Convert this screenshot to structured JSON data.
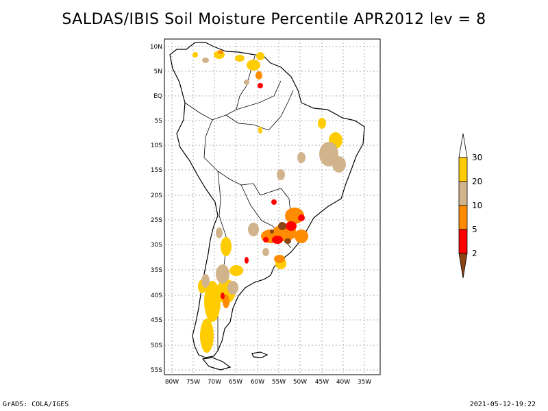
{
  "title": "SALDAS/IBIS Soil Moisture Percentile APR2012 lev = 8",
  "footer_left": "GrADS: COLA/IGES",
  "footer_right": "2021-05-12-19:22",
  "map": {
    "lon_range": [
      -81,
      -30
    ],
    "lat_range": [
      -56,
      12
    ],
    "lat_ticks": [
      "10N",
      "5N",
      "EQ",
      "5S",
      "10S",
      "15S",
      "20S",
      "25S",
      "30S",
      "35S",
      "40S",
      "45S",
      "50S",
      "55S"
    ],
    "lon_ticks": [
      "80W",
      "75W",
      "70W",
      "65W",
      "60W",
      "55W",
      "50W",
      "45W",
      "40W",
      "35W"
    ]
  },
  "legend": {
    "labels": [
      "30",
      "20",
      "10",
      "5",
      "2"
    ],
    "colors": {
      "above_30": "#ffffff",
      "20_30": "#ffcc00",
      "10_20": "#d2b48c",
      "5_10": "#ff8c00",
      "2_5": "#ff0000",
      "below_2": "#8b4513"
    }
  }
}
